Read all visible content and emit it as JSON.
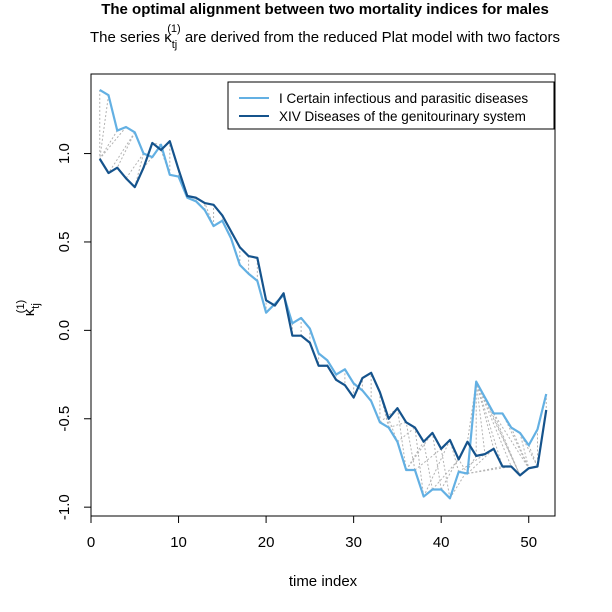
{
  "chart_data": {
    "type": "line",
    "title": "The optimal alignment between two mortality indices for males",
    "subtitle": {
      "prefix": "The series ",
      "symbol": "κ",
      "subscript": "tj",
      "superscript": "(1)",
      "suffix": " are derived from the reduced Plat model with two factors"
    },
    "xlabel": "time index",
    "ylabel": {
      "symbol": "κ",
      "subscript": "tj",
      "superscript": "(1)"
    },
    "xlim": [
      0,
      53
    ],
    "ylim": [
      -1.05,
      1.45
    ],
    "xticks": [
      0,
      10,
      20,
      30,
      40,
      50
    ],
    "yticks": [
      -1.0,
      -0.5,
      0.0,
      0.5,
      1.0
    ],
    "ytick_labels": [
      "-1.0",
      "-0.5",
      "0.0",
      "0.5",
      "1.0"
    ],
    "grid": false,
    "legend_position": "top-right",
    "x": [
      1,
      2,
      3,
      4,
      5,
      6,
      7,
      8,
      9,
      10,
      11,
      12,
      13,
      14,
      15,
      16,
      17,
      18,
      19,
      20,
      21,
      22,
      23,
      24,
      25,
      26,
      27,
      28,
      29,
      30,
      31,
      32,
      33,
      34,
      35,
      36,
      37,
      38,
      39,
      40,
      41,
      42,
      43,
      44,
      45,
      46,
      47,
      48,
      49,
      50,
      51,
      52
    ],
    "series": [
      {
        "name": "I Certain infectious and parasitic diseases",
        "color": "#63b0e3",
        "values": [
          1.36,
          1.33,
          1.13,
          1.15,
          1.12,
          1.0,
          0.98,
          1.05,
          0.88,
          0.87,
          0.75,
          0.73,
          0.68,
          0.59,
          0.62,
          0.52,
          0.37,
          0.32,
          0.28,
          0.1,
          0.15,
          0.2,
          0.04,
          0.07,
          0.01,
          -0.13,
          -0.17,
          -0.25,
          -0.22,
          -0.3,
          -0.34,
          -0.4,
          -0.52,
          -0.55,
          -0.63,
          -0.79,
          -0.79,
          -0.94,
          -0.9,
          -0.9,
          -0.95,
          -0.8,
          -0.81,
          -0.29,
          -0.38,
          -0.47,
          -0.47,
          -0.55,
          -0.58,
          -0.65,
          -0.56,
          -0.36
        ]
      },
      {
        "name": "XIV Diseases of the genitourinary system",
        "color": "#15538c",
        "values": [
          0.97,
          0.89,
          0.92,
          0.86,
          0.81,
          0.92,
          1.06,
          1.02,
          1.07,
          0.91,
          0.76,
          0.75,
          0.72,
          0.71,
          0.65,
          0.56,
          0.47,
          0.42,
          0.41,
          0.17,
          0.14,
          0.21,
          -0.03,
          -0.03,
          -0.07,
          -0.2,
          -0.2,
          -0.28,
          -0.31,
          -0.38,
          -0.27,
          -0.24,
          -0.35,
          -0.5,
          -0.44,
          -0.52,
          -0.55,
          -0.63,
          -0.58,
          -0.67,
          -0.62,
          -0.73,
          -0.63,
          -0.71,
          -0.7,
          -0.67,
          -0.77,
          -0.77,
          -0.82,
          -0.78,
          -0.77,
          -0.45
        ]
      }
    ],
    "alignment_links": [
      [
        1,
        1
      ],
      [
        2,
        1
      ],
      [
        3,
        1
      ],
      [
        4,
        1
      ],
      [
        5,
        2
      ],
      [
        5,
        3
      ],
      [
        6,
        4
      ],
      [
        6,
        5
      ],
      [
        7,
        6
      ],
      [
        8,
        7
      ],
      [
        9,
        8
      ],
      [
        9,
        9
      ],
      [
        10,
        10
      ],
      [
        11,
        10
      ],
      [
        11,
        11
      ],
      [
        12,
        12
      ],
      [
        13,
        13
      ],
      [
        14,
        13
      ],
      [
        14,
        14
      ],
      [
        15,
        15
      ],
      [
        16,
        16
      ],
      [
        17,
        17
      ],
      [
        18,
        18
      ],
      [
        19,
        19
      ],
      [
        20,
        20
      ],
      [
        21,
        21
      ],
      [
        22,
        22
      ],
      [
        23,
        23
      ],
      [
        24,
        24
      ],
      [
        25,
        25
      ],
      [
        26,
        26
      ],
      [
        27,
        27
      ],
      [
        28,
        28
      ],
      [
        29,
        29
      ],
      [
        30,
        30
      ],
      [
        31,
        31
      ],
      [
        32,
        32
      ],
      [
        33,
        33
      ],
      [
        34,
        33
      ],
      [
        34,
        34
      ],
      [
        35,
        34
      ],
      [
        36,
        35
      ],
      [
        37,
        36
      ],
      [
        38,
        37
      ],
      [
        39,
        38
      ],
      [
        40,
        39
      ],
      [
        41,
        40
      ],
      [
        42,
        41
      ],
      [
        43,
        42
      ],
      [
        44,
        43
      ],
      [
        44,
        44
      ],
      [
        44,
        45
      ],
      [
        44,
        46
      ],
      [
        44,
        47
      ],
      [
        44,
        48
      ],
      [
        44,
        49
      ],
      [
        45,
        49
      ],
      [
        46,
        49
      ],
      [
        46,
        50
      ],
      [
        47,
        50
      ],
      [
        48,
        50
      ],
      [
        49,
        50
      ],
      [
        49,
        51
      ],
      [
        50,
        51
      ],
      [
        51,
        51
      ],
      [
        52,
        52
      ],
      [
        33,
        35
      ],
      [
        34,
        36
      ],
      [
        35,
        37
      ],
      [
        36,
        38
      ],
      [
        36,
        39
      ],
      [
        37,
        40
      ],
      [
        38,
        41
      ],
      [
        39,
        42
      ],
      [
        40,
        43
      ],
      [
        41,
        44
      ],
      [
        42,
        45
      ],
      [
        43,
        46
      ],
      [
        43,
        47
      ],
      [
        43,
        48
      ]
    ]
  }
}
